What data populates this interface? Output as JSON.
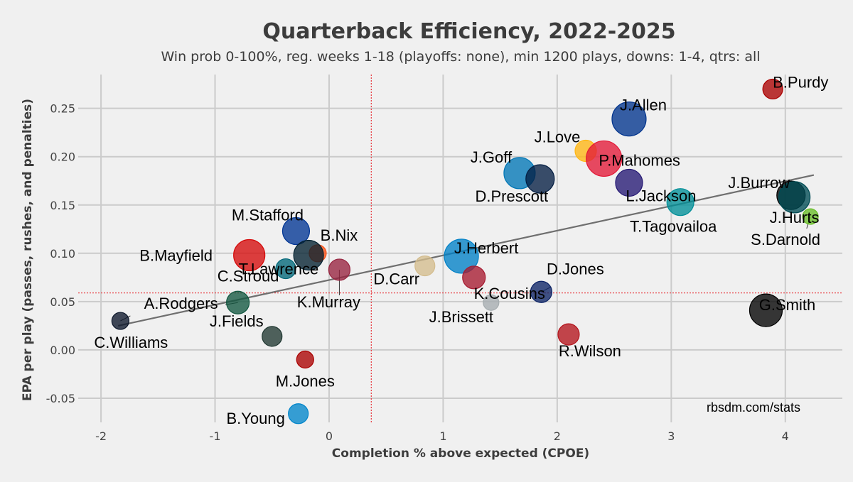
{
  "chart_data": {
    "type": "scatter",
    "title": "Quarterback Efficiency, 2022-2025",
    "subtitle": "Win prob 0-100%, reg. weeks 1-18 (playoffs: none), min 1200 plays, downs: 1-4, qtrs: all",
    "xlabel": "Completion % above expected (CPOE)",
    "ylabel": "EPA per play (passes, rushes, and penalties)",
    "source": "rbsdm.com/stats",
    "xlim": [
      -2.2,
      4.5
    ],
    "ylim": [
      -0.075,
      0.285
    ],
    "x_ticks": [
      -2,
      -1,
      0,
      1,
      2,
      3,
      4
    ],
    "y_ticks": [
      -0.05,
      0.0,
      0.05,
      0.1,
      0.15,
      0.2,
      0.25
    ],
    "x_tick_labels": [
      "-2",
      "-1",
      "0",
      "1",
      "2",
      "3",
      "4"
    ],
    "y_tick_labels": [
      "-0.05",
      "0.00",
      "0.05",
      "0.10",
      "0.15",
      "0.20",
      "0.25"
    ],
    "reference_lines": {
      "x_mean": 0.37,
      "y_mean": 0.059,
      "color": "#e8474c"
    },
    "trend_line": {
      "x": [
        -1.85,
        4.25
      ],
      "y": [
        0.025,
        0.181
      ],
      "color": "#6f6f6f"
    },
    "points": [
      {
        "name": "B.Purdy",
        "x": 3.89,
        "y": 0.27,
        "size": 14,
        "color": "#aa0000"
      },
      {
        "name": "J.Allen",
        "x": 2.63,
        "y": 0.239,
        "size": 24,
        "color": "#00338d"
      },
      {
        "name": "J.Love",
        "x": 2.25,
        "y": 0.206,
        "size": 15,
        "color": "#ffb612"
      },
      {
        "name": "P.Mahomes",
        "x": 2.41,
        "y": 0.198,
        "size": 25,
        "color": "#e31837"
      },
      {
        "name": "J.Goff",
        "x": 1.67,
        "y": 0.183,
        "size": 22,
        "color": "#0076b6"
      },
      {
        "name": "D.Prescott",
        "x": 1.85,
        "y": 0.177,
        "size": 20,
        "color": "#041e42"
      },
      {
        "name": "L.Jackson",
        "x": 2.63,
        "y": 0.173,
        "size": 19,
        "color": "#241773"
      },
      {
        "name": "T.Tagovailoa",
        "x": 3.08,
        "y": 0.153,
        "size": 19,
        "color": "#008e97"
      },
      {
        "name": "J.Burrow",
        "x": 4.05,
        "y": 0.16,
        "size": 20,
        "color": "#000000"
      },
      {
        "name": "J.Hurts",
        "x": 4.08,
        "y": 0.158,
        "size": 22,
        "color": "#004c54"
      },
      {
        "name": "S.Darnold",
        "x": 4.22,
        "y": 0.138,
        "size": 11,
        "color": "#69be28"
      },
      {
        "name": "M.Stafford",
        "x": -0.29,
        "y": 0.123,
        "size": 19,
        "color": "#003594"
      },
      {
        "name": "B.Nix",
        "x": -0.1,
        "y": 0.1,
        "size": 12,
        "color": "#fb4f14"
      },
      {
        "name": "B.Mayfield",
        "x": -0.7,
        "y": 0.098,
        "size": 22,
        "color": "#d50a0a"
      },
      {
        "name": "T.Lawrence",
        "x": -0.38,
        "y": 0.084,
        "size": 14,
        "color": "#006778"
      },
      {
        "name": "C.Stroud",
        "x": -0.18,
        "y": 0.098,
        "size": 21,
        "color": "#03202f"
      },
      {
        "name": "K.Murray",
        "x": 0.09,
        "y": 0.083,
        "size": 15,
        "color": "#97233f"
      },
      {
        "name": "D.Carr",
        "x": 0.84,
        "y": 0.087,
        "size": 14,
        "color": "#d3bc8d"
      },
      {
        "name": "J.Herbert",
        "x": 1.16,
        "y": 0.097,
        "size": 24,
        "color": "#0080c6"
      },
      {
        "name": "K.Cousins",
        "x": 1.27,
        "y": 0.075,
        "size": 16,
        "color": "#a71930"
      },
      {
        "name": "D.Jones",
        "x": 1.86,
        "y": 0.06,
        "size": 15,
        "color": "#0b2265"
      },
      {
        "name": "J.Brissett",
        "x": 1.42,
        "y": 0.049,
        "size": 11,
        "color": "#a5acaf"
      },
      {
        "name": "A.Rodgers",
        "x": -0.8,
        "y": 0.049,
        "size": 16,
        "color": "#125740"
      },
      {
        "name": "C.Williams",
        "x": -1.83,
        "y": 0.03,
        "size": 12,
        "color": "#0b162a"
      },
      {
        "name": "J.Fields",
        "x": -0.5,
        "y": 0.014,
        "size": 14,
        "color": "#203731"
      },
      {
        "name": "G.Smith",
        "x": 3.83,
        "y": 0.041,
        "size": 23,
        "color": "#000000"
      },
      {
        "name": "R.Wilson",
        "x": 2.1,
        "y": 0.016,
        "size": 15,
        "color": "#b3131b"
      },
      {
        "name": "M.Jones",
        "x": -0.21,
        "y": -0.01,
        "size": 12,
        "color": "#aa0000"
      },
      {
        "name": "B.Young",
        "x": -0.27,
        "y": -0.066,
        "size": 14,
        "color": "#0085ca"
      }
    ]
  }
}
